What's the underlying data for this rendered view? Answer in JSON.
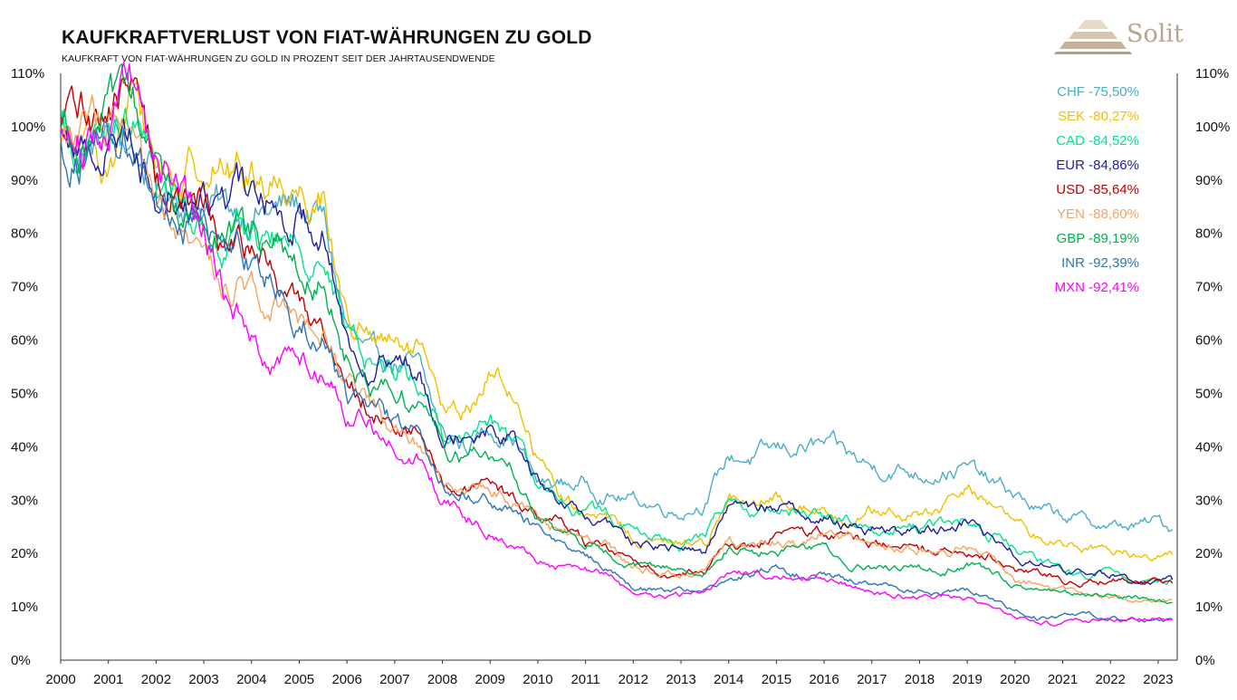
{
  "chart_data": {
    "type": "line",
    "title": "KAUFKRAFTVERLUST VON FIAT-WÄHRUNGEN ZU GOLD",
    "subtitle": "KAUFKRAFT VON FIAT-WÄHRUNGEN ZU GOLD IN PROZENT SEIT DER JAHRTAUSENDWENDE",
    "brand": "Solit",
    "xlabel": "",
    "ylabel": "",
    "xlim": [
      2000,
      2023.4
    ],
    "ylim": [
      0,
      110
    ],
    "x_ticks": [
      "2000",
      "2001",
      "2002",
      "2003",
      "2004",
      "2005",
      "2006",
      "2007",
      "2008",
      "2009",
      "2010",
      "2011",
      "2012",
      "2013",
      "2014",
      "2015",
      "2016",
      "2017",
      "2018",
      "2019",
      "2020",
      "2021",
      "2022",
      "2023"
    ],
    "y_ticks": [
      "0%",
      "10%",
      "20%",
      "30%",
      "40%",
      "50%",
      "60%",
      "70%",
      "80%",
      "90%",
      "100%",
      "110%"
    ],
    "grid": false,
    "legend_position": "top-right",
    "x": [
      2000,
      2000.5,
      2001,
      2001.5,
      2002,
      2002.5,
      2003,
      2003.5,
      2004,
      2004.5,
      2005,
      2005.5,
      2006,
      2006.5,
      2007,
      2007.5,
      2008,
      2008.5,
      2009,
      2009.5,
      2010,
      2010.5,
      2011,
      2011.5,
      2012,
      2012.5,
      2013,
      2013.5,
      2014,
      2014.5,
      2015,
      2015.5,
      2016,
      2016.5,
      2017,
      2017.5,
      2018,
      2018.5,
      2019,
      2019.5,
      2020,
      2020.5,
      2021,
      2021.5,
      2022,
      2022.5,
      2023,
      2023.3
    ],
    "series": [
      {
        "name": "CHF",
        "label": "CHF -75,50%",
        "color": "#4bacc6",
        "values": [
          100,
          95,
          98,
          96,
          90,
          88,
          86,
          84,
          85,
          84,
          85,
          82,
          62,
          55,
          56,
          54,
          42,
          40,
          44,
          42,
          33,
          33,
          33,
          31,
          30,
          29,
          28,
          30,
          38,
          38,
          39,
          40,
          40,
          38,
          36,
          36,
          35,
          36,
          36,
          33,
          31,
          28,
          27,
          26,
          25,
          25,
          26,
          24.5
        ]
      },
      {
        "name": "SEK",
        "label": "SEK -80,27%",
        "color": "#f0c000",
        "values": [
          97,
          93,
          95,
          104,
          93,
          90,
          95,
          92,
          91,
          90,
          89,
          88,
          64,
          60,
          58,
          57,
          46,
          46,
          54,
          50,
          38,
          31,
          27,
          26,
          23,
          22,
          22,
          22,
          31,
          28,
          30,
          29,
          28,
          27,
          28,
          27,
          27,
          28,
          32,
          30,
          25,
          23,
          22,
          21,
          21,
          20,
          20,
          19.7
        ]
      },
      {
        "name": "CAD",
        "label": "CAD -84,52%",
        "color": "#00e58a",
        "values": [
          100,
          94,
          97,
          100,
          89,
          84,
          83,
          81,
          80,
          78,
          78,
          77,
          60,
          56,
          55,
          53,
          42,
          42,
          45,
          41,
          31,
          30,
          28,
          27,
          24,
          23,
          22,
          23,
          31,
          27,
          28,
          28,
          27,
          26,
          25,
          25,
          25,
          25,
          26,
          24,
          21,
          18,
          17,
          16,
          16,
          15,
          15,
          15.5
        ]
      },
      {
        "name": "EUR",
        "label": "EUR -84,86%",
        "color": "#1f1f9e",
        "values": [
          100,
          95,
          98,
          100,
          88,
          87,
          85,
          88,
          86,
          85,
          84,
          83,
          60,
          57,
          56,
          55,
          45,
          44,
          44,
          43,
          33,
          30,
          26,
          25,
          22,
          21,
          21,
          20,
          30,
          28,
          29,
          28,
          27,
          25,
          25,
          24,
          24,
          25,
          26,
          23,
          20,
          18,
          17,
          16,
          16,
          15,
          15,
          15.1
        ]
      },
      {
        "name": "USD",
        "label": "USD -85,64%",
        "color": "#c00000",
        "values": [
          100,
          102,
          104,
          108,
          92,
          87,
          85,
          78,
          76,
          72,
          66,
          62,
          53,
          48,
          45,
          42,
          33,
          32,
          32,
          30,
          27,
          26,
          22,
          20,
          18,
          17,
          16,
          17,
          22,
          21,
          23,
          23,
          24,
          23,
          22,
          22,
          21,
          21,
          21,
          20,
          17,
          16,
          15,
          15,
          15,
          15,
          15,
          14.4
        ]
      },
      {
        "name": "YEN",
        "label": "YEN -88,60%",
        "color": "#f4a460",
        "values": [
          100,
          98,
          100,
          96,
          82,
          76,
          74,
          71,
          70,
          68,
          66,
          64,
          52,
          48,
          44,
          42,
          34,
          32,
          32,
          30,
          26,
          24,
          22,
          21,
          18,
          17,
          16,
          17,
          22,
          21,
          22,
          22,
          24,
          23,
          22,
          21,
          21,
          20,
          21,
          19,
          15,
          14,
          13,
          12,
          12,
          11.5,
          11.5,
          11.4
        ]
      },
      {
        "name": "GBP",
        "label": "GBP -89,19%",
        "color": "#00b050",
        "values": [
          100,
          99,
          100,
          101,
          90,
          85,
          82,
          79,
          78,
          76,
          74,
          73,
          58,
          53,
          51,
          48,
          40,
          38,
          37,
          35,
          27,
          24,
          21,
          20,
          18,
          17,
          17,
          17,
          21,
          20,
          21,
          20,
          21,
          18,
          17,
          17,
          17,
          17,
          18,
          16,
          14,
          13,
          12,
          12,
          12,
          11.5,
          11.2,
          10.8
        ]
      },
      {
        "name": "INR",
        "label": "INR -92,39%",
        "color": "#2e75b6",
        "values": [
          98,
          95,
          100,
          98,
          86,
          83,
          82,
          76,
          74,
          71,
          65,
          62,
          50,
          46,
          44,
          42,
          33,
          31,
          30,
          28,
          24,
          22,
          19,
          17,
          14,
          13,
          13,
          13,
          16,
          16,
          17,
          16,
          17,
          15,
          14,
          13,
          13,
          13,
          13,
          11,
          9,
          8,
          8,
          8,
          8,
          7.5,
          7.6,
          7.6
        ]
      },
      {
        "name": "MXN",
        "label": "MXN -92,41%",
        "color": "#ff00ff",
        "values": [
          100,
          98,
          104,
          108,
          92,
          88,
          82,
          66,
          62,
          57,
          55,
          56,
          48,
          44,
          40,
          38,
          30,
          27,
          25,
          22,
          19,
          18,
          17,
          16,
          12,
          12,
          12,
          13,
          16,
          16,
          16,
          16,
          15,
          14,
          13,
          12,
          12,
          12,
          12,
          10,
          8,
          7,
          7,
          7.5,
          7.5,
          7.5,
          7.6,
          7.6
        ]
      }
    ]
  }
}
